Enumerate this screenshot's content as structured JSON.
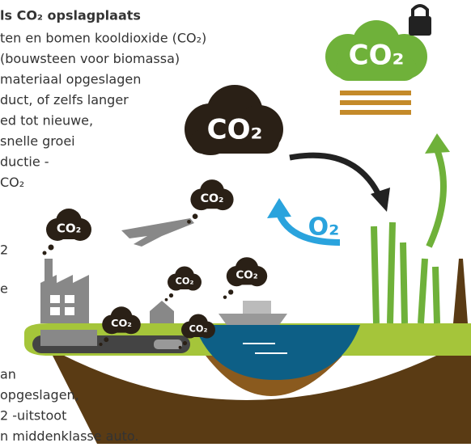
{
  "text": {
    "title": "ls CO₂ opslagplaats",
    "top_lines": [
      "ten en bomen kooldioxide (CO₂)",
      "(bouwsteen voor biomassa)",
      "materiaal opgeslagen",
      "duct, of zelfs langer",
      "ed tot nieuwe,",
      "snelle groei",
      "ductie -",
      "CO₂"
    ],
    "side_fragments": [
      "2",
      "e"
    ],
    "bottom_lines": [
      "an",
      "opgeslagen,",
      "2 -uitstoot",
      "n middenklasse auto."
    ]
  },
  "illustration": {
    "big_cloud": "CO₂",
    "locked_cloud": "CO₂",
    "oxygen": "O₂",
    "small_clouds": [
      "CO₂",
      "CO₂",
      "CO₂",
      "CO₂",
      "CO₂",
      "CO₂"
    ]
  }
}
